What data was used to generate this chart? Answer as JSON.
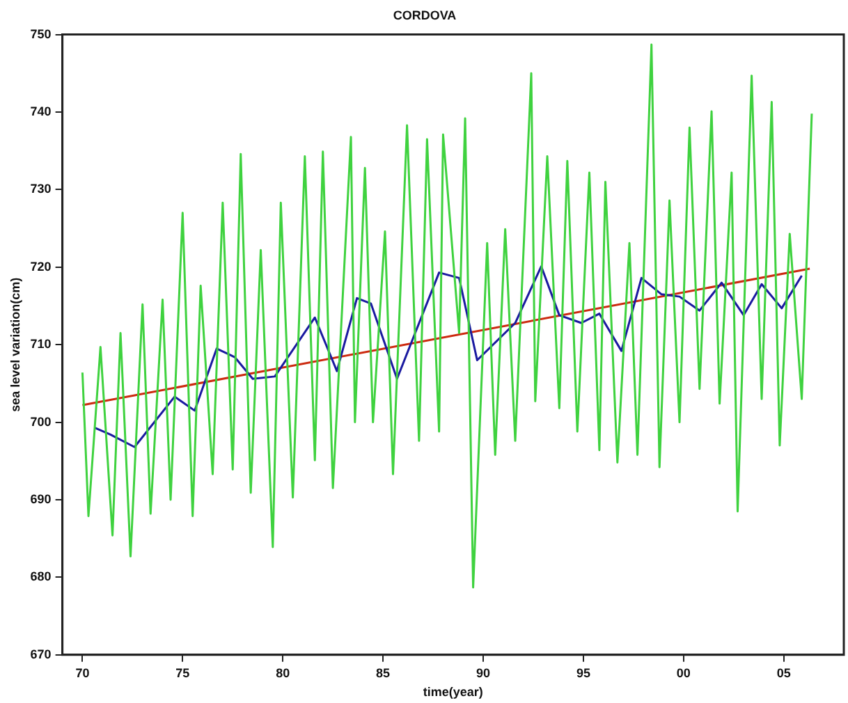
{
  "chart_data": {
    "type": "line",
    "title": "CORDOVA",
    "xlabel": "time(year)",
    "ylabel": "sea level variation(cm)",
    "xlim": [
      1969,
      2008
    ],
    "xticks": [
      {
        "value": 1970,
        "label": "70"
      },
      {
        "value": 1975,
        "label": "75"
      },
      {
        "value": 1980,
        "label": "80"
      },
      {
        "value": 1985,
        "label": "85"
      },
      {
        "value": 1990,
        "label": "90"
      },
      {
        "value": 1995,
        "label": "95"
      },
      {
        "value": 2000,
        "label": "00"
      },
      {
        "value": 2005,
        "label": "05"
      }
    ],
    "ylim": [
      670,
      750
    ],
    "yticks": [
      670,
      680,
      690,
      700,
      710,
      720,
      730,
      740,
      750
    ],
    "grid": false,
    "legend": false,
    "marker": "none",
    "line_style": "solid",
    "series": [
      {
        "color": "#3fd23f",
        "x": [
          1970.0,
          1970.3,
          1970.9,
          1971.5,
          1971.9,
          1972.4,
          1973.0,
          1973.4,
          1974.0,
          1974.4,
          1975.0,
          1975.5,
          1975.9,
          1976.5,
          1977.0,
          1977.5,
          1977.9,
          1978.4,
          1978.9,
          1979.5,
          1979.9,
          1980.5,
          1981.1,
          1981.6,
          1982.0,
          1982.5,
          1983.4,
          1983.6,
          1984.1,
          1984.5,
          1985.1,
          1985.5,
          1986.2,
          1986.8,
          1987.2,
          1987.8,
          1988.0,
          1988.8,
          1989.1,
          1989.5,
          1990.2,
          1990.6,
          1991.1,
          1991.6,
          1992.4,
          1992.6,
          1993.2,
          1993.8,
          1994.2,
          1994.7,
          1995.3,
          1995.8,
          1996.1,
          1996.7,
          1997.3,
          1997.7,
          1998.4,
          1998.8,
          1999.3,
          1999.8,
          2000.3,
          2000.8,
          2001.4,
          2001.8,
          2002.4,
          2002.7,
          2003.4,
          2003.9,
          2004.4,
          2004.8,
          2005.3,
          2005.9,
          2006.4
        ],
        "values": [
          706.4,
          687.9,
          709.7,
          685.4,
          711.5,
          682.7,
          715.2,
          688.2,
          715.8,
          690.0,
          727.0,
          687.9,
          717.6,
          693.3,
          728.3,
          693.9,
          734.6,
          690.9,
          722.2,
          683.9,
          728.3,
          690.3,
          734.3,
          695.1,
          734.9,
          691.5,
          736.8,
          700.0,
          732.8,
          700.0,
          724.6,
          693.3,
          738.3,
          697.6,
          736.5,
          698.8,
          737.1,
          711.5,
          739.2,
          678.7,
          723.1,
          695.8,
          724.9,
          697.6,
          745.0,
          702.7,
          734.3,
          701.8,
          733.7,
          698.8,
          732.2,
          696.4,
          731.0,
          694.8,
          723.1,
          695.8,
          748.7,
          694.2,
          728.6,
          700.0,
          738.0,
          704.3,
          740.1,
          702.4,
          732.2,
          688.5,
          744.7,
          703.0,
          741.3,
          697.0,
          724.3,
          703.0,
          739.8
        ]
      },
      {
        "color": "#1a1aa0",
        "x": [
          1970.6,
          1971.4,
          1972.6,
          1974.6,
          1975.6,
          1976.7,
          1977.6,
          1978.5,
          1979.6,
          1981.6,
          1982.7,
          1983.7,
          1984.4,
          1985.7,
          1987.8,
          1988.8,
          1989.7,
          1991.6,
          1992.9,
          1993.8,
          1994.9,
          1995.8,
          1996.9,
          1997.9,
          1998.9,
          1999.8,
          2000.8,
          2001.9,
          2003.0,
          2003.9,
          2004.9,
          2005.9
        ],
        "values": [
          699.3,
          698.4,
          696.8,
          703.3,
          701.5,
          709.5,
          708.4,
          705.6,
          705.9,
          713.5,
          706.6,
          716.0,
          715.3,
          705.6,
          719.3,
          718.6,
          708.0,
          712.8,
          720.1,
          713.8,
          712.8,
          714.0,
          709.2,
          718.6,
          716.5,
          716.2,
          714.4,
          718.0,
          713.8,
          717.8,
          714.7,
          718.9
        ]
      },
      {
        "color": "#cc2a10",
        "x": [
          1970.0,
          2006.3
        ],
        "values": [
          702.2,
          719.8
        ]
      }
    ]
  }
}
